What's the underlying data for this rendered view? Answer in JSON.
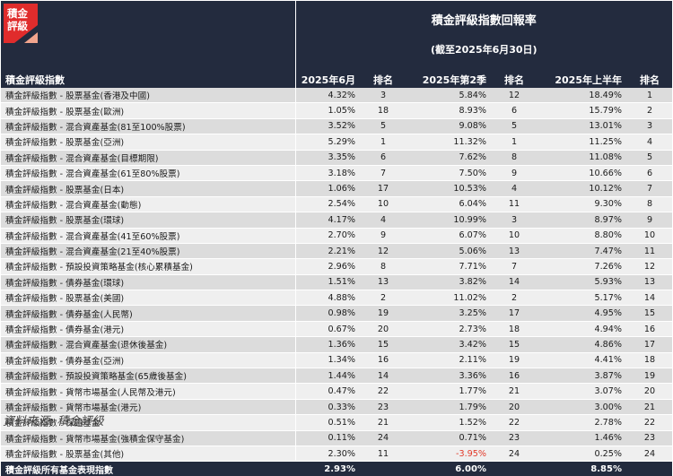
{
  "brand": {
    "logo_text": [
      "積金",
      "評級"
    ],
    "logo_color": "#e02c2c",
    "accent_color": "#f2a58d"
  },
  "header": {
    "title": "積金評級指數回報率",
    "subtitle": "(截至2025年6月30日)",
    "index_col": "積金評級指數",
    "cols": [
      "2025年6月",
      "排名",
      "2025年第2季",
      "排名",
      "2025年上半年",
      "排名"
    ]
  },
  "rows": [
    {
      "name": "積金評級指數 - 股票基金(香港及中國)",
      "m": "4.32%",
      "mr": "3",
      "q": "5.84%",
      "qr": "12",
      "h": "18.49%",
      "hr": "1"
    },
    {
      "name": "積金評級指數 - 股票基金(歐洲)",
      "m": "1.05%",
      "mr": "18",
      "q": "8.93%",
      "qr": "6",
      "h": "15.79%",
      "hr": "2"
    },
    {
      "name": "積金評級指數 - 混合資產基金(81至100%股票)",
      "m": "3.52%",
      "mr": "5",
      "q": "9.08%",
      "qr": "5",
      "h": "13.01%",
      "hr": "3"
    },
    {
      "name": "積金評級指數 - 股票基金(亞洲)",
      "m": "5.29%",
      "mr": "1",
      "q": "11.32%",
      "qr": "1",
      "h": "11.25%",
      "hr": "4"
    },
    {
      "name": "積金評級指數 - 混合資產基金(目標期限)",
      "m": "3.35%",
      "mr": "6",
      "q": "7.62%",
      "qr": "8",
      "h": "11.08%",
      "hr": "5"
    },
    {
      "name": "積金評級指數 - 混合資產基金(61至80%股票)",
      "m": "3.18%",
      "mr": "7",
      "q": "7.50%",
      "qr": "9",
      "h": "10.66%",
      "hr": "6"
    },
    {
      "name": "積金評級指數 - 股票基金(日本)",
      "m": "1.06%",
      "mr": "17",
      "q": "10.53%",
      "qr": "4",
      "h": "10.12%",
      "hr": "7"
    },
    {
      "name": "積金評級指數 - 混合資產基金(動態)",
      "m": "2.54%",
      "mr": "10",
      "q": "6.04%",
      "qr": "11",
      "h": "9.30%",
      "hr": "8"
    },
    {
      "name": "積金評級指數 - 股票基金(環球)",
      "m": "4.17%",
      "mr": "4",
      "q": "10.99%",
      "qr": "3",
      "h": "8.97%",
      "hr": "9"
    },
    {
      "name": "積金評級指數 - 混合資產基金(41至60%股票)",
      "m": "2.70%",
      "mr": "9",
      "q": "6.07%",
      "qr": "10",
      "h": "8.80%",
      "hr": "10"
    },
    {
      "name": "積金評級指數 - 混合資產基金(21至40%股票)",
      "m": "2.21%",
      "mr": "12",
      "q": "5.06%",
      "qr": "13",
      "h": "7.47%",
      "hr": "11"
    },
    {
      "name": "積金評級指數 - 預設投資策略基金(核心累積基金)",
      "m": "2.96%",
      "mr": "8",
      "q": "7.71%",
      "qr": "7",
      "h": "7.26%",
      "hr": "12"
    },
    {
      "name": "積金評級指數 - 債券基金(環球)",
      "m": "1.51%",
      "mr": "13",
      "q": "3.82%",
      "qr": "14",
      "h": "5.93%",
      "hr": "13"
    },
    {
      "name": "積金評級指數 - 股票基金(美國)",
      "m": "4.88%",
      "mr": "2",
      "q": "11.02%",
      "qr": "2",
      "h": "5.17%",
      "hr": "14"
    },
    {
      "name": "積金評級指數 - 債券基金(人民幣)",
      "m": "0.98%",
      "mr": "19",
      "q": "3.25%",
      "qr": "17",
      "h": "4.95%",
      "hr": "15"
    },
    {
      "name": "積金評級指數 - 債券基金(港元)",
      "m": "0.67%",
      "mr": "20",
      "q": "2.73%",
      "qr": "18",
      "h": "4.94%",
      "hr": "16"
    },
    {
      "name": "積金評級指數 - 混合資產基金(退休後基金)",
      "m": "1.36%",
      "mr": "15",
      "q": "3.42%",
      "qr": "15",
      "h": "4.86%",
      "hr": "17"
    },
    {
      "name": "積金評級指數 - 債券基金(亞洲)",
      "m": "1.34%",
      "mr": "16",
      "q": "2.11%",
      "qr": "19",
      "h": "4.41%",
      "hr": "18"
    },
    {
      "name": "積金評級指數 - 預設投資策略基金(65歲後基金)",
      "m": "1.44%",
      "mr": "14",
      "q": "3.36%",
      "qr": "16",
      "h": "3.87%",
      "hr": "19"
    },
    {
      "name": "積金評級指數 - 貨幣市場基金(人民幣及港元)",
      "m": "0.47%",
      "mr": "22",
      "q": "1.77%",
      "qr": "21",
      "h": "3.07%",
      "hr": "20"
    },
    {
      "name": "積金評級指數 - 貨幣市場基金(港元)",
      "m": "0.33%",
      "mr": "23",
      "q": "1.79%",
      "qr": "20",
      "h": "3.00%",
      "hr": "21"
    },
    {
      "name": "積金評級指數 - 保證基金",
      "m": "0.51%",
      "mr": "21",
      "q": "1.52%",
      "qr": "22",
      "h": "2.78%",
      "hr": "22"
    },
    {
      "name": "積金評級指數 - 貨幣市場基金(強積金保守基金)",
      "m": "0.11%",
      "mr": "24",
      "q": "0.71%",
      "qr": "23",
      "h": "1.46%",
      "hr": "23"
    },
    {
      "name": "積金評級指數 - 股票基金(其他)",
      "m": "2.30%",
      "mr": "11",
      "q": "-3.95%",
      "qr": "24",
      "h": "0.25%",
      "hr": "24",
      "q_negative": true
    }
  ],
  "footer": {
    "name": "積金評級所有基金表現指數",
    "m": "2.93%",
    "q": "6.00%",
    "h": "8.85%"
  },
  "source": "資料來源:   積金評級"
}
